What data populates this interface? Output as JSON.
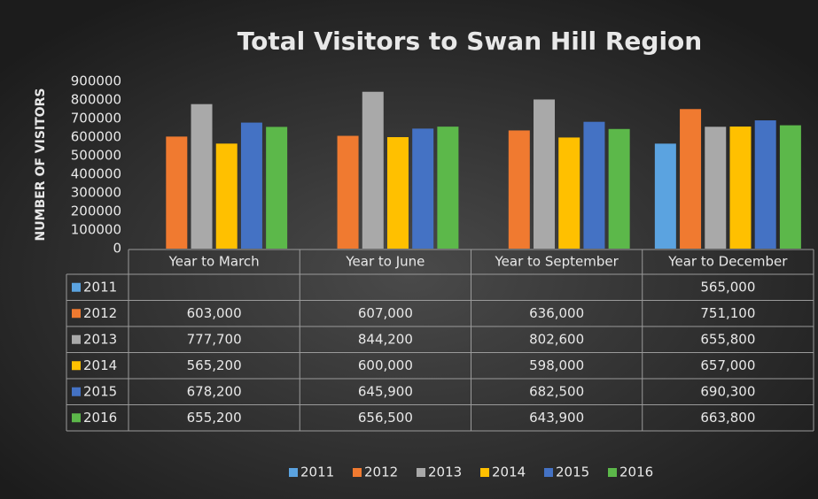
{
  "chart_data": {
    "type": "bar",
    "title": "Total Visitors to Swan Hill Region",
    "y_label": "NUMBER OF VISITORS",
    "categories": [
      "Year to March",
      "Year to June",
      "Year to September",
      "Year to December"
    ],
    "series": [
      {
        "name": "2011",
        "color": "#5ba3e0",
        "values": [
          null,
          null,
          null,
          565000
        ],
        "value_labels": [
          null,
          null,
          null,
          "565,000"
        ]
      },
      {
        "name": "2012",
        "color": "#f07a30",
        "values": [
          603000,
          607000,
          636000,
          751100
        ],
        "value_labels": [
          "603,000",
          "607,000",
          "636,000",
          "751,100"
        ]
      },
      {
        "name": "2013",
        "color": "#a9a9a9",
        "values": [
          777700,
          844200,
          802600,
          655800
        ],
        "value_labels": [
          "777,700",
          "844,200",
          "802,600",
          "655,800"
        ]
      },
      {
        "name": "2014",
        "color": "#ffc000",
        "values": [
          565200,
          600000,
          598000,
          657000
        ],
        "value_labels": [
          "565,200",
          "600,000",
          "598,000",
          "657,000"
        ]
      },
      {
        "name": "2015",
        "color": "#4472c4",
        "values": [
          678200,
          645900,
          682500,
          690300
        ],
        "value_labels": [
          "678,200",
          "645,900",
          "682,500",
          "690,300"
        ]
      },
      {
        "name": "2016",
        "color": "#5cb84a",
        "values": [
          655200,
          656500,
          643900,
          663800
        ],
        "value_labels": [
          "655,200",
          "656,500",
          "643,900",
          "663,800"
        ]
      }
    ],
    "ylim": [
      0,
      900000
    ],
    "yticks": [
      0,
      100000,
      200000,
      300000,
      400000,
      500000,
      600000,
      700000,
      800000,
      900000
    ],
    "grid": false,
    "legend": "bottom"
  }
}
